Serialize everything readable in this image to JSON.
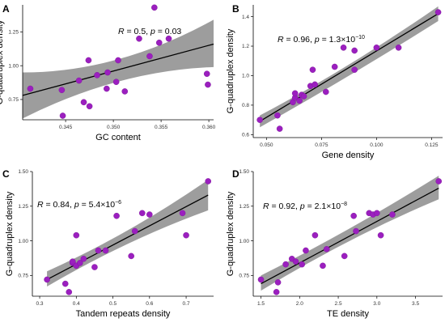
{
  "chart_data": [
    {
      "panel_label": "A",
      "type": "scatter",
      "xlabel": "GC content",
      "ylabel": "G-quadruplex density",
      "annotation": {
        "r_symbol": "R",
        "r_text": " = 0.5, ",
        "p_symbol": "p",
        "p_text": " = 0.03",
        "p_sup": ""
      },
      "xlim": [
        0.3405,
        0.3605
      ],
      "ylim": [
        0.6,
        1.45
      ],
      "xticks": [
        0.345,
        0.35,
        0.355,
        0.36
      ],
      "xtick_labels": [
        "0.345",
        "0.350",
        "0.355",
        "0.360"
      ],
      "yticks": [
        0.75,
        1.0,
        1.25
      ],
      "ytick_labels": [
        "0.75",
        "1.00",
        "1.25"
      ],
      "x": [
        0.3413,
        0.3446,
        0.3447,
        0.3464,
        0.3469,
        0.3474,
        0.3475,
        0.3483,
        0.3493,
        0.3494,
        0.3503,
        0.3505,
        0.3512,
        0.3527,
        0.3538,
        0.3543,
        0.3548,
        0.3558,
        0.3598,
        0.3599
      ],
      "y": [
        0.83,
        0.82,
        0.63,
        0.89,
        0.73,
        1.04,
        0.7,
        0.93,
        0.83,
        0.95,
        0.88,
        1.04,
        0.81,
        1.2,
        1.07,
        1.43,
        1.17,
        1.2,
        0.94,
        0.86
      ],
      "fit": {
        "x": [
          0.3405,
          0.3605
        ],
        "y": [
          0.78,
          1.16
        ],
        "ci_lower": [
          0.61,
          0.99
        ],
        "ci_upper": [
          0.95,
          1.34
        ],
        "ci_mid": [
          0.965,
          0.95
        ]
      },
      "point_color": "#9b1fbf",
      "band_color": "#8c8c8c"
    },
    {
      "panel_label": "B",
      "type": "scatter",
      "xlabel": "Gene density",
      "ylabel": "G-quadruplex density",
      "annotation": {
        "r_symbol": "R",
        "r_text": " = 0.96, ",
        "p_symbol": "p",
        "p_text": " = 1.3×10",
        "p_sup": "−10"
      },
      "xlim": [
        0.044,
        0.13
      ],
      "ylim": [
        0.58,
        1.48
      ],
      "xticks": [
        0.05,
        0.075,
        0.1,
        0.125
      ],
      "xtick_labels": [
        "0.050",
        "0.075",
        "0.100",
        "0.125"
      ],
      "yticks": [
        0.6,
        0.8,
        1.0,
        1.2,
        1.4
      ],
      "ytick_labels": [
        "0.6",
        "0.8",
        "1.0",
        "1.2",
        "1.4"
      ],
      "x": [
        0.047,
        0.055,
        0.056,
        0.062,
        0.063,
        0.063,
        0.065,
        0.066,
        0.067,
        0.07,
        0.071,
        0.072,
        0.077,
        0.081,
        0.085,
        0.09,
        0.09,
        0.1,
        0.11,
        0.128
      ],
      "y": [
        0.7,
        0.73,
        0.64,
        0.82,
        0.85,
        0.88,
        0.83,
        0.87,
        0.86,
        0.93,
        1.04,
        0.94,
        0.89,
        1.06,
        1.19,
        1.04,
        1.17,
        1.19,
        1.19,
        1.43
      ],
      "fit": {
        "x": [
          0.047,
          0.128
        ],
        "y": [
          0.69,
          1.42
        ],
        "ci_lower": [
          0.65,
          1.37
        ],
        "ci_upper": [
          0.73,
          1.47
        ],
        "ci_mid": [
          0.99,
          1.05
        ]
      },
      "point_color": "#9b1fbf",
      "band_color": "#8c8c8c"
    },
    {
      "panel_label": "C",
      "type": "scatter",
      "xlabel": "Tandem repeats density",
      "ylabel": "G-quadruplex density",
      "annotation": {
        "r_symbol": "R",
        "r_text": " = 0.84, ",
        "p_symbol": "p",
        "p_text": " = 5.4×10",
        "p_sup": "−6"
      },
      "xlim": [
        0.28,
        0.775
      ],
      "ylim": [
        0.6,
        1.5
      ],
      "xticks": [
        0.3,
        0.4,
        0.5,
        0.6,
        0.7
      ],
      "xtick_labels": [
        "0.3",
        "0.4",
        "0.5",
        "0.6",
        "0.7"
      ],
      "yticks": [
        0.75,
        1.0,
        1.25,
        1.5
      ],
      "ytick_labels": [
        "0.75",
        "1.00",
        "1.25",
        "1.50"
      ],
      "x": [
        0.32,
        0.37,
        0.38,
        0.39,
        0.39,
        0.4,
        0.4,
        0.41,
        0.42,
        0.45,
        0.46,
        0.48,
        0.51,
        0.55,
        0.56,
        0.58,
        0.6,
        0.69,
        0.7,
        0.76
      ],
      "y": [
        0.72,
        0.69,
        0.63,
        0.84,
        0.85,
        1.04,
        0.82,
        0.84,
        0.87,
        0.81,
        0.93,
        0.93,
        1.18,
        0.89,
        1.07,
        1.2,
        1.19,
        1.2,
        1.04,
        1.43
      ],
      "fit": {
        "x": [
          0.32,
          0.76
        ],
        "y": [
          0.72,
          1.33
        ],
        "ci_lower": [
          0.67,
          1.22
        ],
        "ci_upper": [
          0.78,
          1.44
        ],
        "ci_mid": [
          1.01,
          1.04
        ]
      },
      "point_color": "#9b1fbf",
      "band_color": "#8c8c8c"
    },
    {
      "panel_label": "D",
      "type": "scatter",
      "xlabel": "TE density",
      "ylabel": "G-quadruplex density",
      "annotation": {
        "r_symbol": "R",
        "r_text": " = 0.92, ",
        "p_symbol": "p",
        "p_text": " = 2.1×10",
        "p_sup": "−8"
      },
      "xlim": [
        1.4,
        3.85
      ],
      "ylim": [
        0.6,
        1.5
      ],
      "xticks": [
        1.5,
        2.0,
        2.5,
        3.0,
        3.5
      ],
      "xtick_labels": [
        "1.5",
        "2.0",
        "2.5",
        "3.0",
        "3.5"
      ],
      "yticks": [
        0.75,
        1.0,
        1.25,
        1.5
      ],
      "ytick_labels": [
        "0.75",
        "1.00",
        "1.25",
        "1.50"
      ],
      "x": [
        1.5,
        1.7,
        1.72,
        1.82,
        1.9,
        1.95,
        2.03,
        2.08,
        2.2,
        2.3,
        2.35,
        2.58,
        2.7,
        2.73,
        2.9,
        2.95,
        3.0,
        3.05,
        3.2,
        3.8
      ],
      "y": [
        0.72,
        0.63,
        0.7,
        0.83,
        0.87,
        0.85,
        0.83,
        0.93,
        1.04,
        0.82,
        0.94,
        0.89,
        1.18,
        1.07,
        1.2,
        1.19,
        1.2,
        1.04,
        1.19,
        1.43
      ],
      "fit": {
        "x": [
          1.5,
          3.8
        ],
        "y": [
          0.69,
          1.38
        ],
        "ci_lower": [
          0.64,
          1.3
        ],
        "ci_upper": [
          0.75,
          1.47
        ],
        "ci_mid": [
          1.03,
          1.07
        ]
      },
      "point_color": "#9b1fbf",
      "band_color": "#8c8c8c"
    }
  ]
}
